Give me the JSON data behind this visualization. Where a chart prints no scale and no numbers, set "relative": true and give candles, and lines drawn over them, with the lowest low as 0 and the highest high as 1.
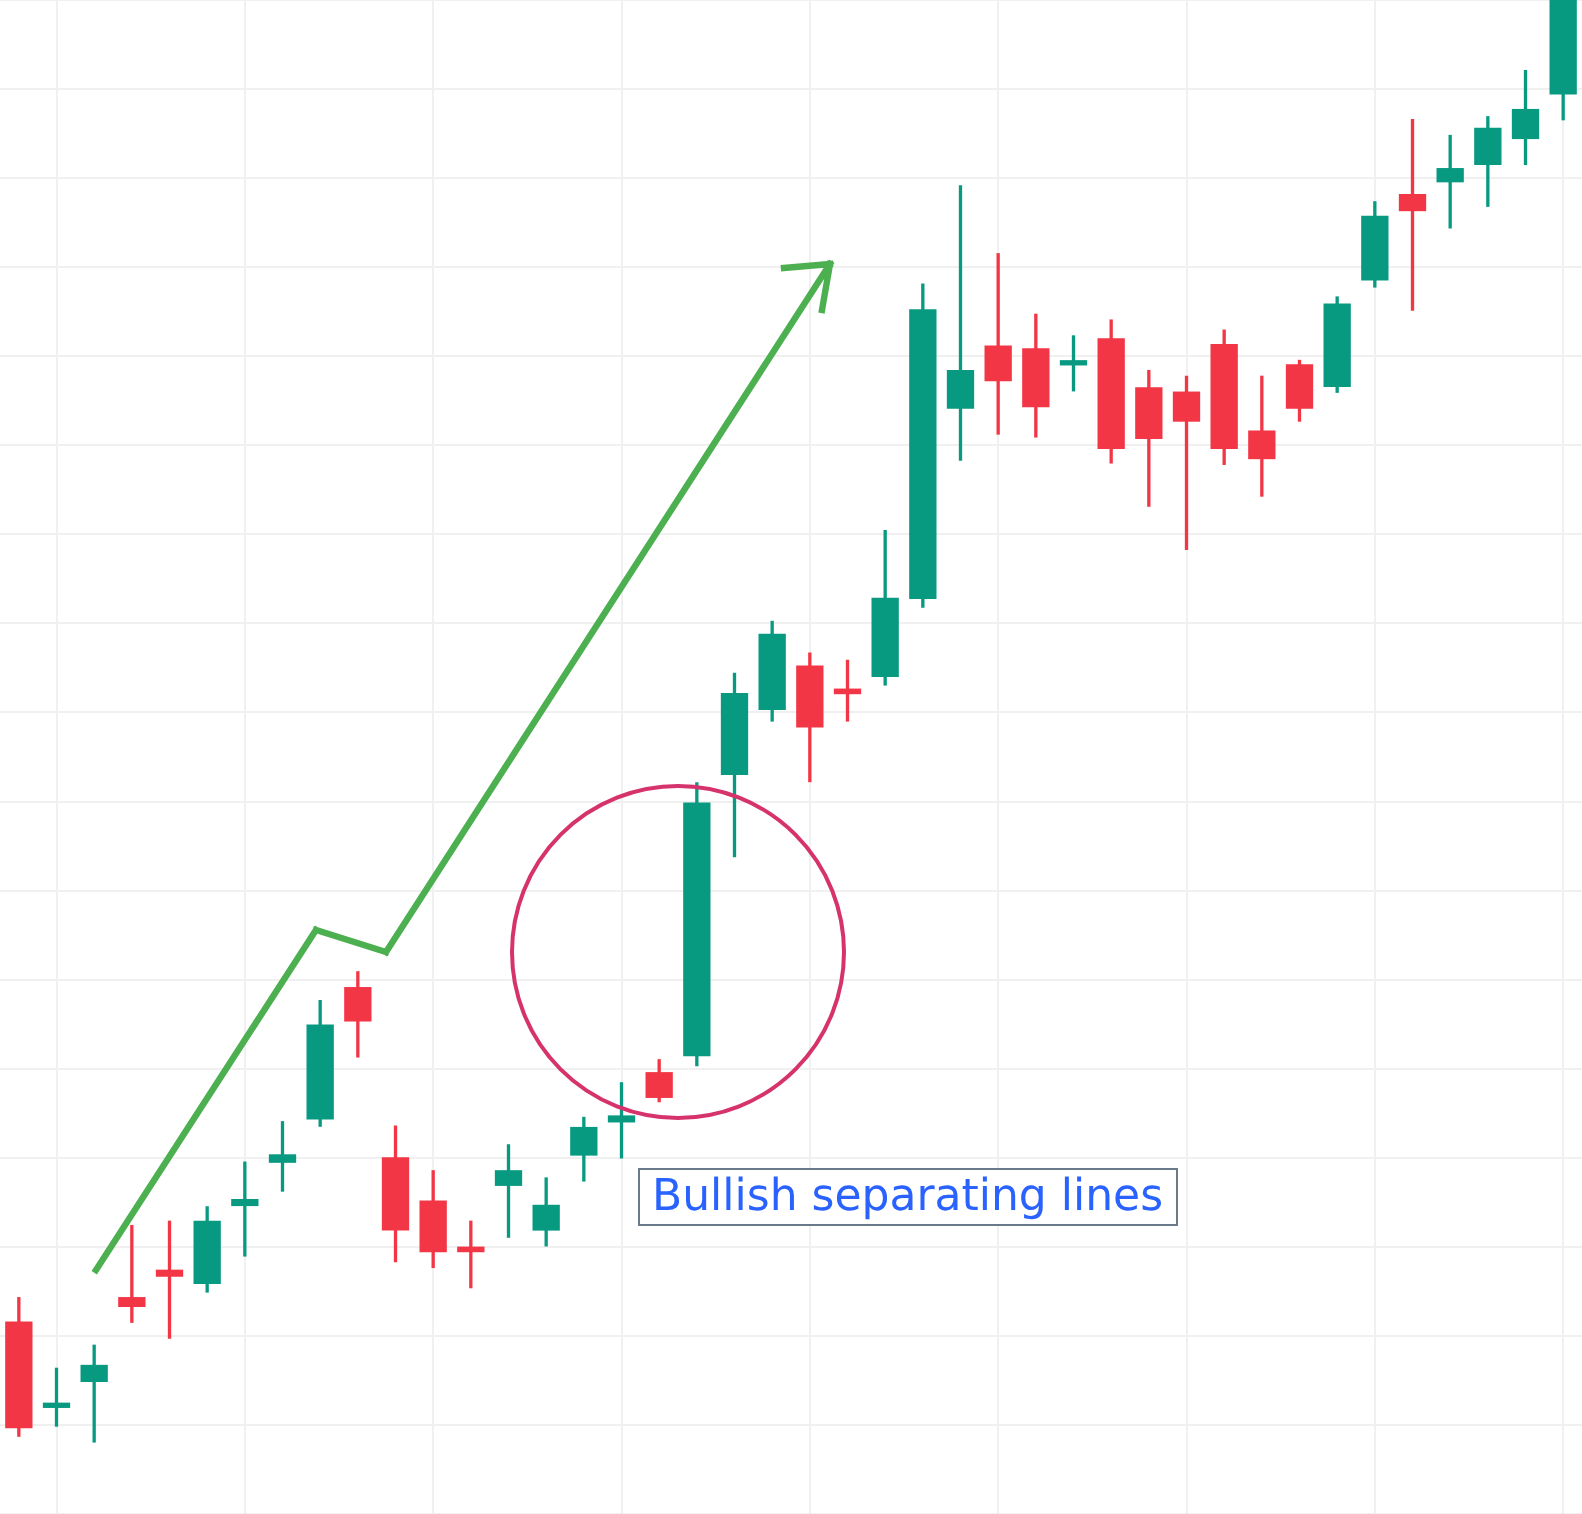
{
  "chart_data": {
    "type": "candlestick",
    "relative": true,
    "grid": true,
    "categories": [
      null,
      null,
      null,
      null,
      null,
      null,
      null,
      null,
      null,
      null,
      null,
      null,
      null,
      null,
      null,
      null,
      null,
      null,
      null,
      null,
      null,
      null,
      null,
      null,
      null,
      null,
      null,
      null,
      null,
      null,
      null,
      null,
      null,
      null,
      null,
      null,
      null,
      null,
      null,
      null,
      null,
      null
    ],
    "ohlc": [
      [
        0.083,
        0.1,
        0.004,
        0.01
      ],
      [
        0.024,
        0.051,
        0.011,
        0.026
      ],
      [
        0.042,
        0.067,
        0,
        0.053
      ],
      [
        0.1,
        0.15,
        0.083,
        0.094
      ],
      [
        0.119,
        0.153,
        0.072,
        0.115
      ],
      [
        0.11,
        0.163,
        0.104,
        0.153
      ],
      [
        0.164,
        0.194,
        0.129,
        0.168
      ],
      [
        0.194,
        0.222,
        0.174,
        0.199
      ],
      [
        0.224,
        0.306,
        0.219,
        0.289
      ],
      [
        0.315,
        0.326,
        0.267,
        0.292
      ],
      [
        0.197,
        0.219,
        0.125,
        0.147
      ],
      [
        0.167,
        0.188,
        0.121,
        0.132
      ],
      [
        0.135,
        0.153,
        0.107,
        0.132
      ],
      [
        0.178,
        0.206,
        0.142,
        0.188
      ],
      [
        0.147,
        0.183,
        0.136,
        0.164
      ],
      [
        0.199,
        0.225,
        0.181,
        0.218
      ],
      [
        0.222,
        0.249,
        0.197,
        0.226
      ],
      [
        0.256,
        0.265,
        0.236,
        0.239
      ],
      [
        0.268,
        0.457,
        0.261,
        0.443
      ],
      [
        0.463,
        0.533,
        0.406,
        0.519
      ],
      [
        0.508,
        0.569,
        0.5,
        0.56
      ],
      [
        0.538,
        0.547,
        0.458,
        0.496
      ],
      [
        0.522,
        0.542,
        0.5,
        0.519
      ],
      [
        0.531,
        0.632,
        0.525,
        0.585
      ],
      [
        0.585,
        0.803,
        0.579,
        0.785
      ],
      [
        0.717,
        0.871,
        0.681,
        0.743
      ],
      [
        0.76,
        0.824,
        0.699,
        0.736
      ],
      [
        0.758,
        0.782,
        0.697,
        0.718
      ],
      [
        0.747,
        0.767,
        0.729,
        0.749
      ],
      [
        0.765,
        0.778,
        0.679,
        0.689
      ],
      [
        0.731,
        0.743,
        0.649,
        0.696
      ],
      [
        0.728,
        0.739,
        0.619,
        0.708
      ],
      [
        0.761,
        0.771,
        0.678,
        0.689
      ],
      [
        0.701,
        0.739,
        0.656,
        0.682
      ],
      [
        0.747,
        0.75,
        0.708,
        0.717
      ],
      [
        0.732,
        0.794,
        0.728,
        0.789
      ],
      [
        0.806,
        0.86,
        0.801,
        0.85
      ],
      [
        0.865,
        0.917,
        0.785,
        0.854
      ],
      [
        0.874,
        0.906,
        0.842,
        0.883
      ],
      [
        0.886,
        0.919,
        0.857,
        0.911
      ],
      [
        0.904,
        0.951,
        0.886,
        0.924
      ],
      [
        0.935,
        1,
        0.917,
        1
      ]
    ],
    "colors": [
      "#f23645",
      "#089981",
      "#089981",
      "#f23645",
      "#f23645",
      "#089981",
      "#089981",
      "#089981",
      "#089981",
      "#f23645",
      "#f23645",
      "#f23645",
      "#f23645",
      "#089981",
      "#089981",
      "#089981",
      "#089981",
      "#f23645",
      "#089981",
      "#089981",
      "#089981",
      "#f23645",
      "#f23645",
      "#089981",
      "#089981",
      "#089981",
      "#f23645",
      "#f23645",
      "#089981",
      "#f23645",
      "#f23645",
      "#f23645",
      "#f23645",
      "#f23645",
      "#f23645",
      "#089981",
      "#089981",
      "#f23645",
      "#089981",
      "#089981",
      "#089981",
      "#089981"
    ],
    "annotations": [
      "Bullish separating lines"
    ]
  }
}
